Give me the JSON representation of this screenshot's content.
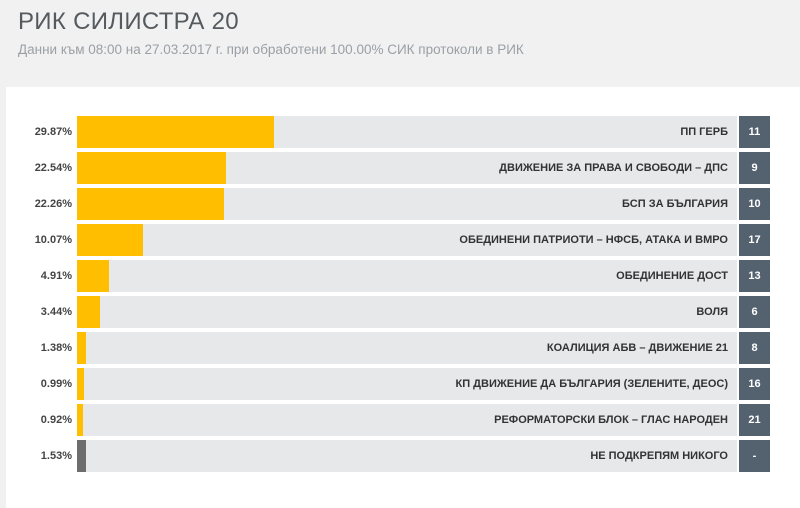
{
  "header": {
    "title": "РИК СИЛИСТРА 20",
    "subtitle": "Данни към 08:00 на 27.03.2017 г. при обработени 100.00% СИК протоколи в РИК"
  },
  "colors": {
    "bar": "#ffbf00",
    "neutral_bar": "#6d6d6d",
    "track": "#e6e8ea",
    "seat_badge": "#546270"
  },
  "chart_data": {
    "type": "bar",
    "orientation": "horizontal",
    "xlim": [
      0,
      100
    ],
    "categories": [
      "ПП ГЕРБ",
      "ДВИЖЕНИЕ ЗА ПРАВА И СВОБОДИ – ДПС",
      "БСП ЗА БЪЛГАРИЯ",
      "ОБЕДИНЕНИ ПАТРИОТИ – НФСБ, АТАКА И ВМРО",
      "ОБЕДИНЕНИЕ ДОСТ",
      "ВОЛЯ",
      "КОАЛИЦИЯ АБВ – ДВИЖЕНИЕ 21",
      "КП ДВИЖЕНИЕ ДА БЪЛГАРИЯ (ЗЕЛЕНИТЕ, ДЕОС)",
      "РЕФОРМАТОРСКИ БЛОК – ГЛАС НАРОДЕН",
      "НЕ ПОДКРЕПЯМ НИКОГО"
    ],
    "values": [
      29.87,
      22.54,
      22.26,
      10.07,
      4.91,
      3.44,
      1.38,
      0.99,
      0.92,
      1.53
    ]
  },
  "results": [
    {
      "pct": "29.87%",
      "party": "ПП ГЕРБ",
      "seats": "11",
      "neutral": false
    },
    {
      "pct": "22.54%",
      "party": "ДВИЖЕНИЕ ЗА ПРАВА И СВОБОДИ – ДПС",
      "seats": "9",
      "neutral": false
    },
    {
      "pct": "22.26%",
      "party": "БСП ЗА БЪЛГАРИЯ",
      "seats": "10",
      "neutral": false
    },
    {
      "pct": "10.07%",
      "party": "ОБЕДИНЕНИ ПАТРИОТИ – НФСБ, АТАКА И ВМРО",
      "seats": "17",
      "neutral": false
    },
    {
      "pct": "4.91%",
      "party": "ОБЕДИНЕНИЕ ДОСТ",
      "seats": "13",
      "neutral": false
    },
    {
      "pct": "3.44%",
      "party": "ВОЛЯ",
      "seats": "6",
      "neutral": false
    },
    {
      "pct": "1.38%",
      "party": "КОАЛИЦИЯ АБВ – ДВИЖЕНИЕ 21",
      "seats": "8",
      "neutral": false
    },
    {
      "pct": "0.99%",
      "party": "КП ДВИЖЕНИЕ ДА БЪЛГАРИЯ (ЗЕЛЕНИТЕ, ДЕОС)",
      "seats": "16",
      "neutral": false
    },
    {
      "pct": "0.92%",
      "party": "РЕФОРМАТОРСКИ БЛОК – ГЛАС НАРОДЕН",
      "seats": "21",
      "neutral": false
    },
    {
      "pct": "1.53%",
      "party": "НЕ ПОДКРЕПЯМ НИКОГО",
      "seats": "-",
      "neutral": true
    }
  ]
}
